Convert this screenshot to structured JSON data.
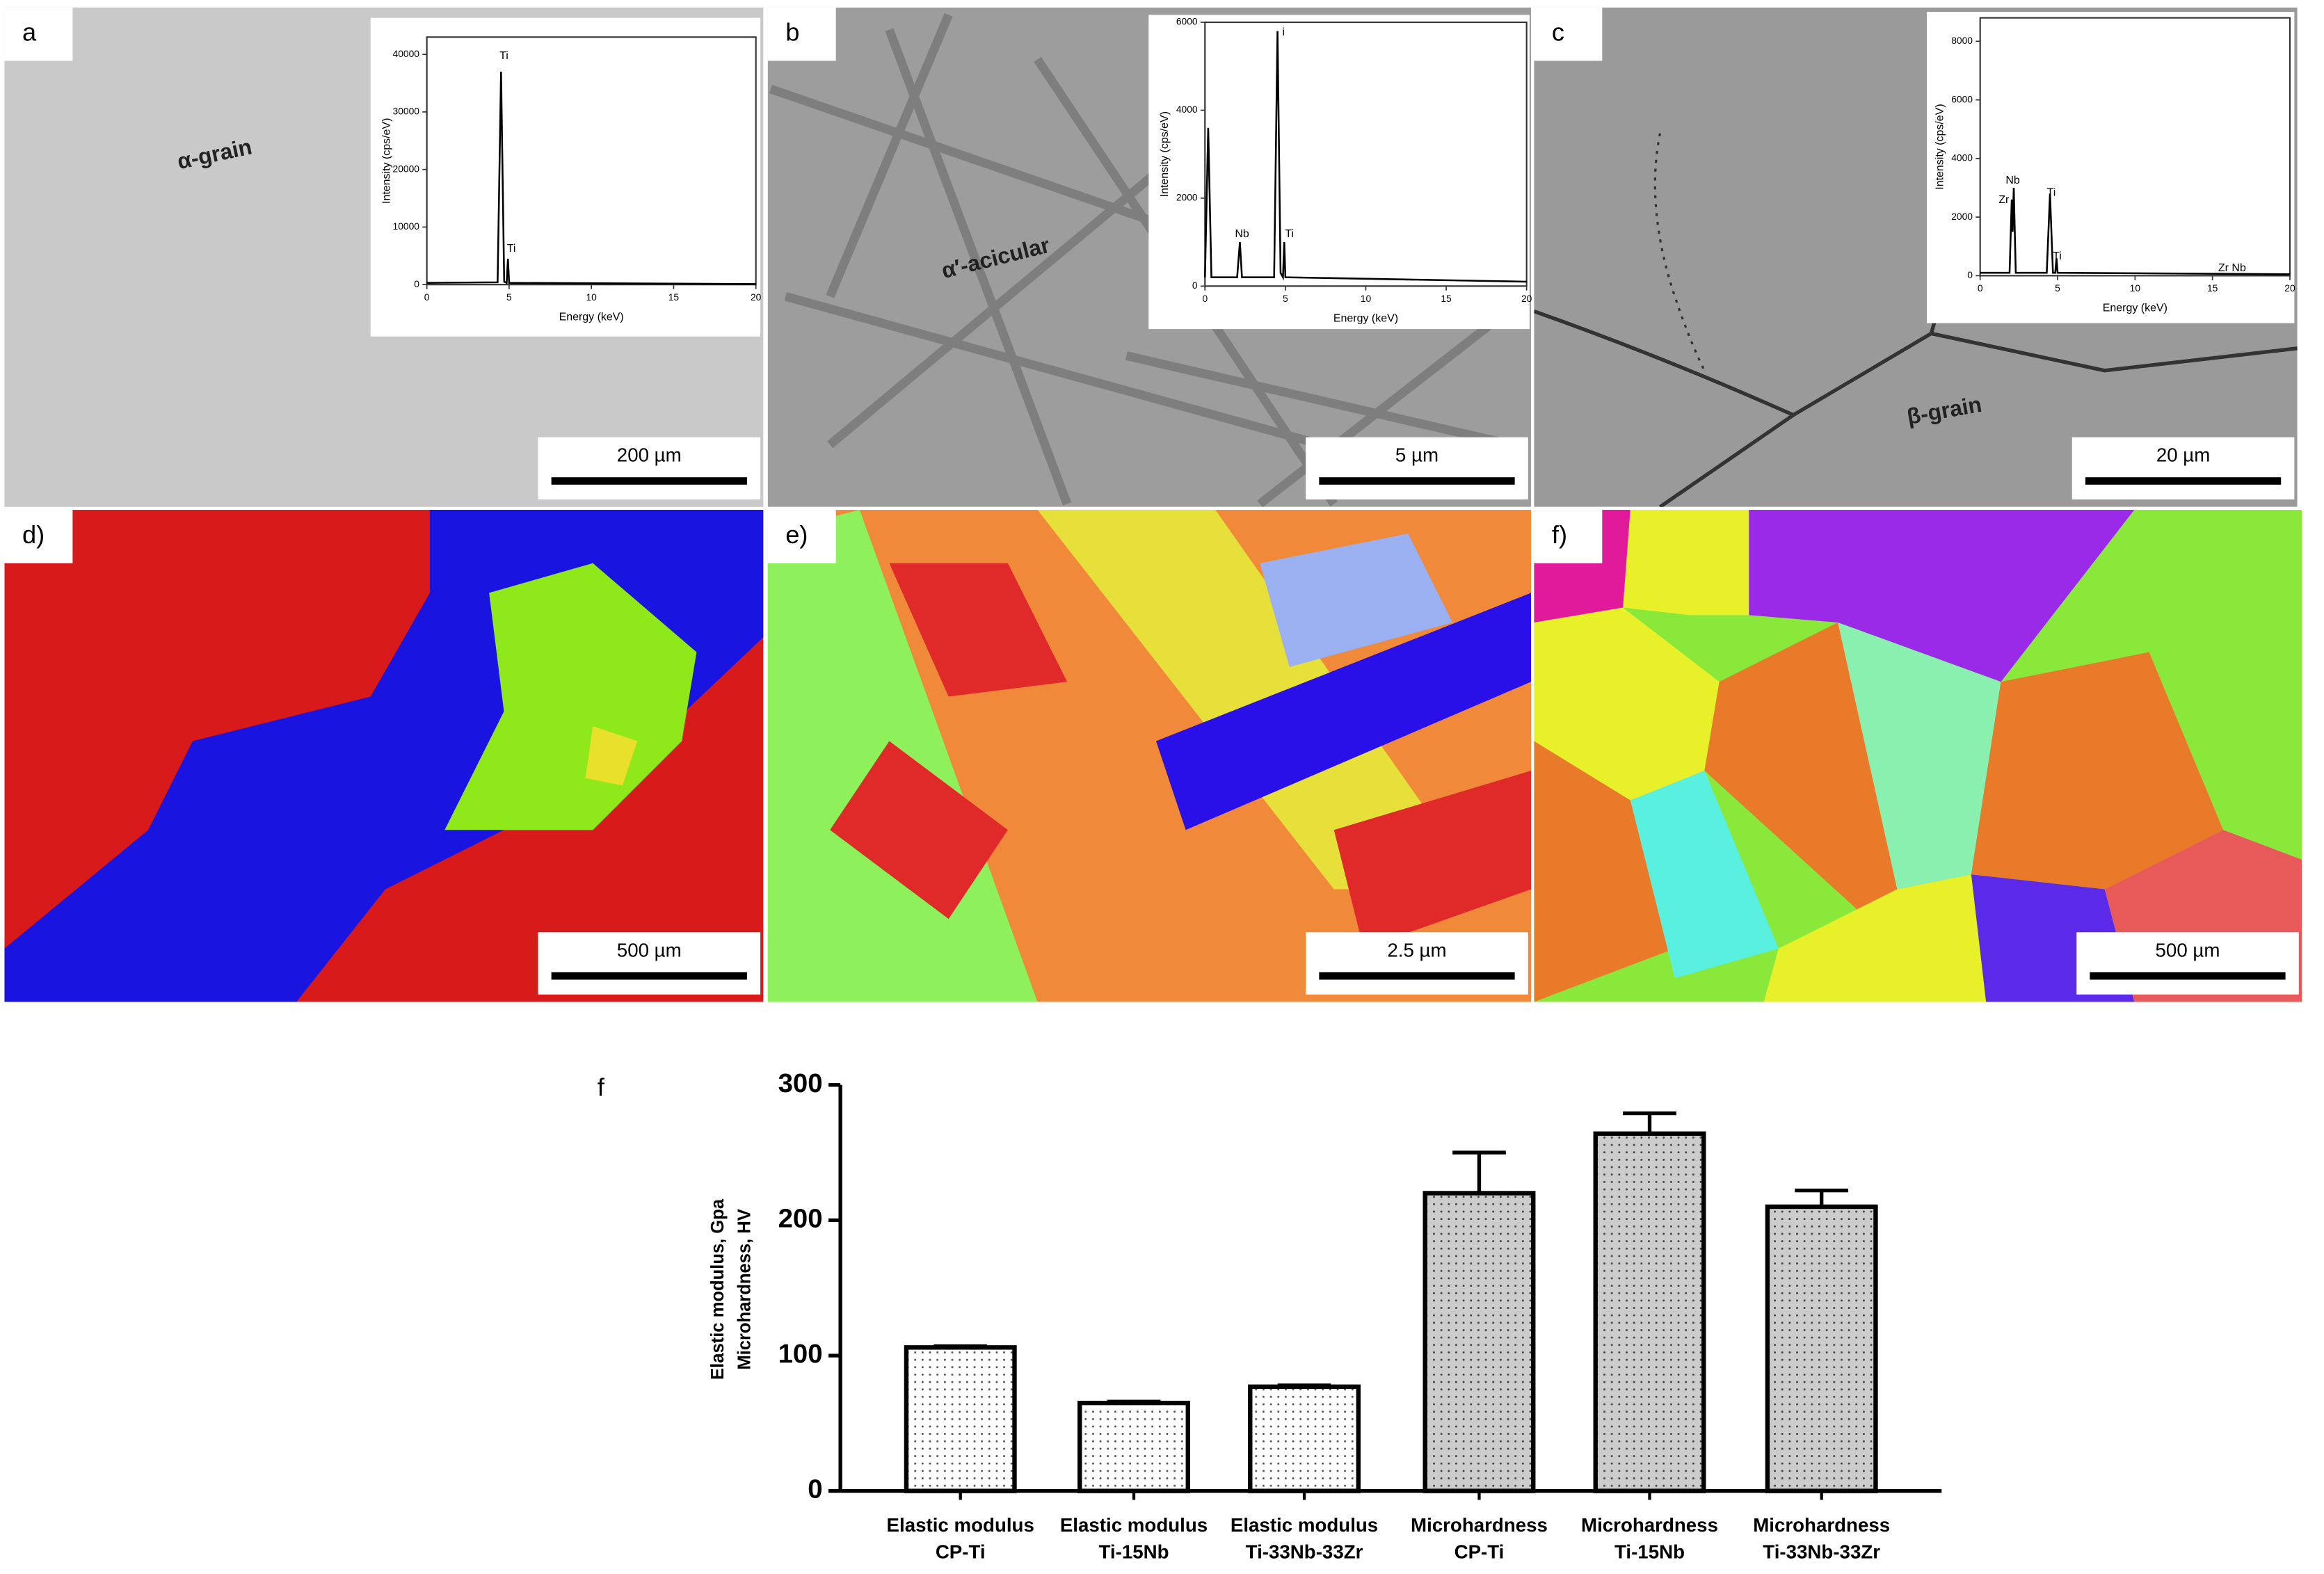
{
  "panels": [
    {
      "label": "a",
      "annotation": "α-grain",
      "scale_bar": "200 µm"
    },
    {
      "label": "b",
      "annotation": "α′-acicular",
      "scale_bar": "5 µm"
    },
    {
      "label": "c",
      "annotation": "β-grain",
      "scale_bar": "20 µm"
    },
    {
      "label": "d)",
      "scale_bar": "500 µm"
    },
    {
      "label": "e)",
      "scale_bar": "2.5 µm"
    },
    {
      "label": "f)",
      "scale_bar": "500 µm"
    }
  ],
  "chart_data": [
    {
      "type": "line",
      "x_label": "Energy (keV)",
      "y_label": "Intensity (cps/eV)",
      "x": [
        0,
        4.3,
        4.51,
        4.7,
        4.85,
        4.93,
        5.0,
        20
      ],
      "values": [
        300,
        400,
        37000,
        500,
        300,
        4500,
        300,
        100
      ],
      "xlim": [
        0,
        20
      ],
      "xticks": [
        0,
        5,
        10,
        15,
        20
      ],
      "ylim": [
        0,
        43000
      ],
      "yticks": [
        0,
        10000,
        20000,
        30000,
        40000
      ],
      "peak_labels": [
        "Ti",
        "Ti"
      ],
      "color": "#000000"
    },
    {
      "type": "line",
      "x_label": "Energy (keV)",
      "y_label": "Intensity (cps/eV)",
      "x": [
        0,
        0.2,
        0.4,
        2.0,
        2.17,
        2.3,
        4.3,
        4.51,
        4.7,
        4.85,
        4.93,
        5.0,
        20
      ],
      "values": [
        200,
        3600,
        200,
        200,
        1000,
        200,
        200,
        5800,
        300,
        200,
        1000,
        200,
        100
      ],
      "xlim": [
        0,
        20
      ],
      "xticks": [
        0,
        5,
        10,
        15,
        20
      ],
      "ylim": [
        0,
        6000
      ],
      "yticks": [
        0,
        2000,
        4000,
        6000
      ],
      "peak_labels": [
        "Nb",
        "i",
        "Ti"
      ],
      "color": "#000000"
    },
    {
      "type": "line",
      "x_label": "Energy (keV)",
      "y_label": "Intensity (cps/eV)",
      "x": [
        0,
        1.9,
        2.04,
        2.1,
        2.17,
        2.3,
        4.3,
        4.51,
        4.7,
        4.85,
        4.93,
        5.0,
        20
      ],
      "values": [
        100,
        100,
        2600,
        1500,
        3000,
        100,
        100,
        2800,
        100,
        100,
        600,
        100,
        50
      ],
      "xlim": [
        0,
        20
      ],
      "xticks": [
        0,
        5,
        10,
        15,
        20
      ],
      "ylim": [
        0,
        8800
      ],
      "yticks": [
        0,
        2000,
        4000,
        6000,
        8000
      ],
      "peak_labels": [
        "Nb",
        "Zr",
        "Ti",
        "Ti",
        "Zr Nb"
      ],
      "color": "#000000"
    },
    {
      "type": "bar",
      "panel_label": "f",
      "y_label": [
        "Elastic modulus, Gpa",
        "Microhardness, HV"
      ],
      "categories": [
        [
          "Elastic modulus",
          "CP-Ti"
        ],
        [
          "Elastic modulus",
          "Ti-15Nb"
        ],
        [
          "Elastic modulus",
          "Ti-33Nb-33Zr"
        ],
        [
          "Microhardness",
          "CP-Ti"
        ],
        [
          "Microhardness",
          "Ti-15Nb"
        ],
        [
          "Microhardness",
          "Ti-33Nb-33Zr"
        ]
      ],
      "values": [
        106,
        65,
        77,
        220,
        264,
        210
      ],
      "errors": [
        1,
        1,
        1,
        30,
        15,
        12
      ],
      "colors": [
        "#ffffff",
        "#ffffff",
        "#ffffff",
        "#cccccc",
        "#cccccc",
        "#cccccc"
      ],
      "ylim": [
        0,
        300
      ],
      "yticks": [
        0,
        100,
        200,
        300
      ]
    }
  ]
}
